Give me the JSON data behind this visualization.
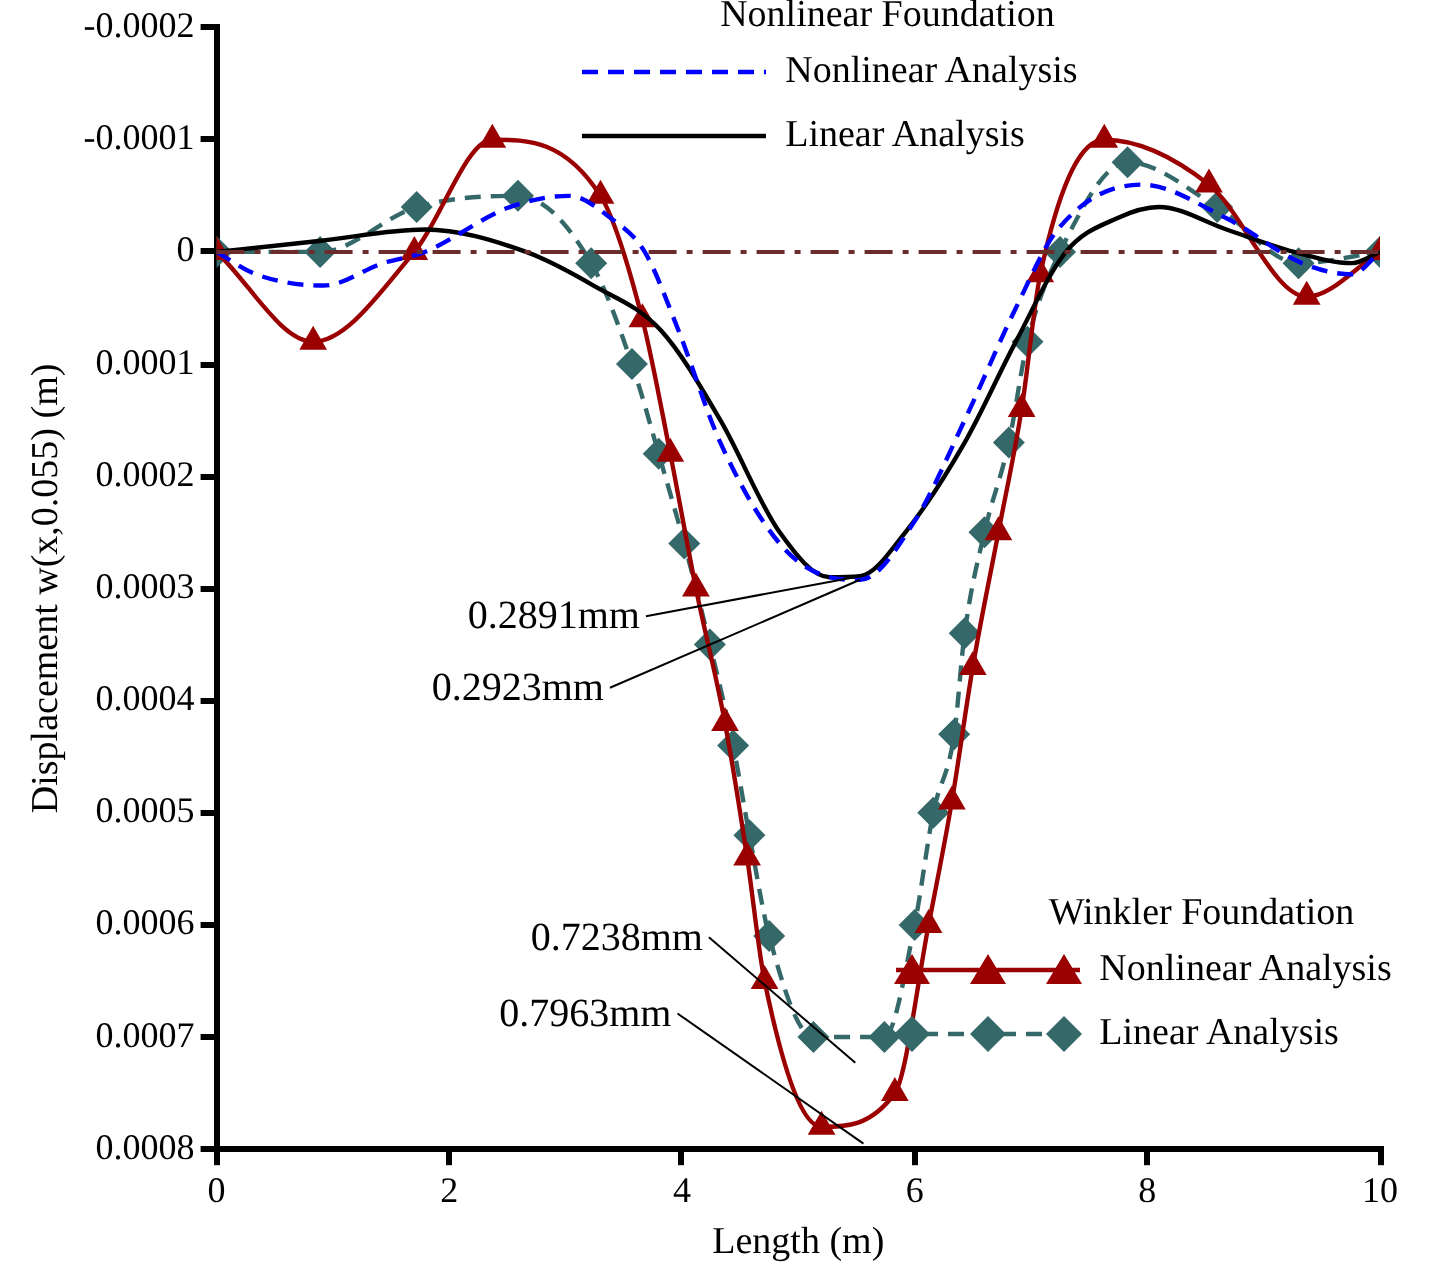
{
  "chart_data": {
    "type": "line",
    "xlabel": "Length (m)",
    "ylabel": "Displacement w(x,0.055) (m)",
    "xlim": [
      0,
      10
    ],
    "xticks": [
      0,
      2,
      4,
      6,
      8,
      10
    ],
    "ylim": [
      0.0008,
      -0.0002
    ],
    "yticks": [
      -0.0002,
      -0.0001,
      0,
      0.0001,
      0.0002,
      0.0003,
      0.0004,
      0.0005,
      0.0006,
      0.0007,
      0.0008
    ],
    "grid": false,
    "legend": "top",
    "series": [
      {
        "name": "Nonlinear Analysis",
        "color": "#0000ff",
        "line_style": "dashed",
        "marker": "none",
        "x": [
          0,
          0.34,
          0.92,
          1.43,
          1.79,
          2.52,
          3.03,
          3.39,
          3.68,
          3.97,
          4.33,
          4.84,
          5.27,
          5.53,
          6.0,
          6.43,
          6.87,
          7.23,
          7.95,
          8.68,
          9.33,
          9.76,
          10
        ],
        "values": [
          0,
          2e-05,
          3e-05,
          1e-05,
          0,
          -4e-05,
          -5e-05,
          -3e-05,
          0,
          7e-05,
          0.00017,
          0.00026,
          0.00029,
          0.0002923,
          0.00024,
          0.00015,
          5e-05,
          -2e-05,
          -6e-05,
          -3e-05,
          1e-05,
          2e-05,
          0
        ]
      },
      {
        "name": "Linear Analysis",
        "color": "#000000",
        "line_style": "solid",
        "marker": "none",
        "x": [
          0,
          0.9,
          1.79,
          2.66,
          3.24,
          3.82,
          4.33,
          4.84,
          5.27,
          5.53,
          5.92,
          6.43,
          6.87,
          7.3,
          7.74,
          8.1,
          8.68,
          9.26,
          9.76,
          10
        ],
        "values": [
          0,
          -1e-05,
          -2e-05,
          0,
          3e-05,
          7e-05,
          0.00015,
          0.00025,
          0.00029,
          0.0002891,
          0.00025,
          0.00017,
          8e-05,
          0,
          -3e-05,
          -4e-05,
          -2e-05,
          0,
          1e-05,
          0
        ]
      },
      {
        "name": "Nonlinear Analysis",
        "color": "#9b0000",
        "line_style": "solid",
        "marker": "triangle",
        "x": [
          0,
          0.83,
          1.7,
          2.37,
          3.3,
          3.66,
          3.9,
          4.12,
          4.37,
          4.56,
          4.71,
          5.2,
          5.83,
          6.12,
          6.32,
          6.5,
          6.72,
          6.92,
          7.08,
          7.63,
          8.53,
          9.37,
          10
        ],
        "values": [
          0,
          8e-05,
          0,
          -0.0001,
          -5e-05,
          6e-05,
          0.00018,
          0.0003,
          0.00042,
          0.00054,
          0.00065,
          0.00078,
          0.00075,
          0.0006,
          0.00049,
          0.00037,
          0.00025,
          0.00014,
          2e-05,
          -0.0001,
          -6e-05,
          4e-05,
          0
        ]
      },
      {
        "name": "Linear Analysis",
        "color": "#356868",
        "line_style": "dashed",
        "marker": "diamond",
        "x": [
          0,
          0.89,
          1.72,
          2.59,
          3.22,
          3.57,
          3.8,
          4.02,
          4.24,
          4.44,
          4.58,
          4.75,
          5.13,
          5.74,
          6.0,
          6.16,
          6.34,
          6.43,
          6.6,
          6.81,
          6.97,
          7.25,
          7.83,
          8.6,
          9.3,
          10
        ],
        "values": [
          0,
          0,
          -4e-05,
          -5e-05,
          1e-05,
          0.0001,
          0.00018,
          0.00026,
          0.00035,
          0.00044,
          0.00052,
          0.00061,
          0.0007,
          0.0007,
          0.0006,
          0.0005,
          0.00043,
          0.00034,
          0.00025,
          0.00017,
          8e-05,
          0,
          -8e-05,
          -4e-05,
          1e-05,
          0
        ]
      }
    ],
    "ref_lines": [
      {
        "axis": "y",
        "value": 0,
        "color": "#6b2c2c"
      }
    ],
    "annotations": [
      "Nonlinear Foundation",
      "Winkler Foundation",
      {
        "text": "0.2891mm",
        "x": 5.53,
        "y": 0.0002891
      },
      {
        "text": "0.2923mm",
        "x": 5.53,
        "y": 0.0002923
      },
      "0.7238mm",
      "0.7963mm"
    ]
  }
}
